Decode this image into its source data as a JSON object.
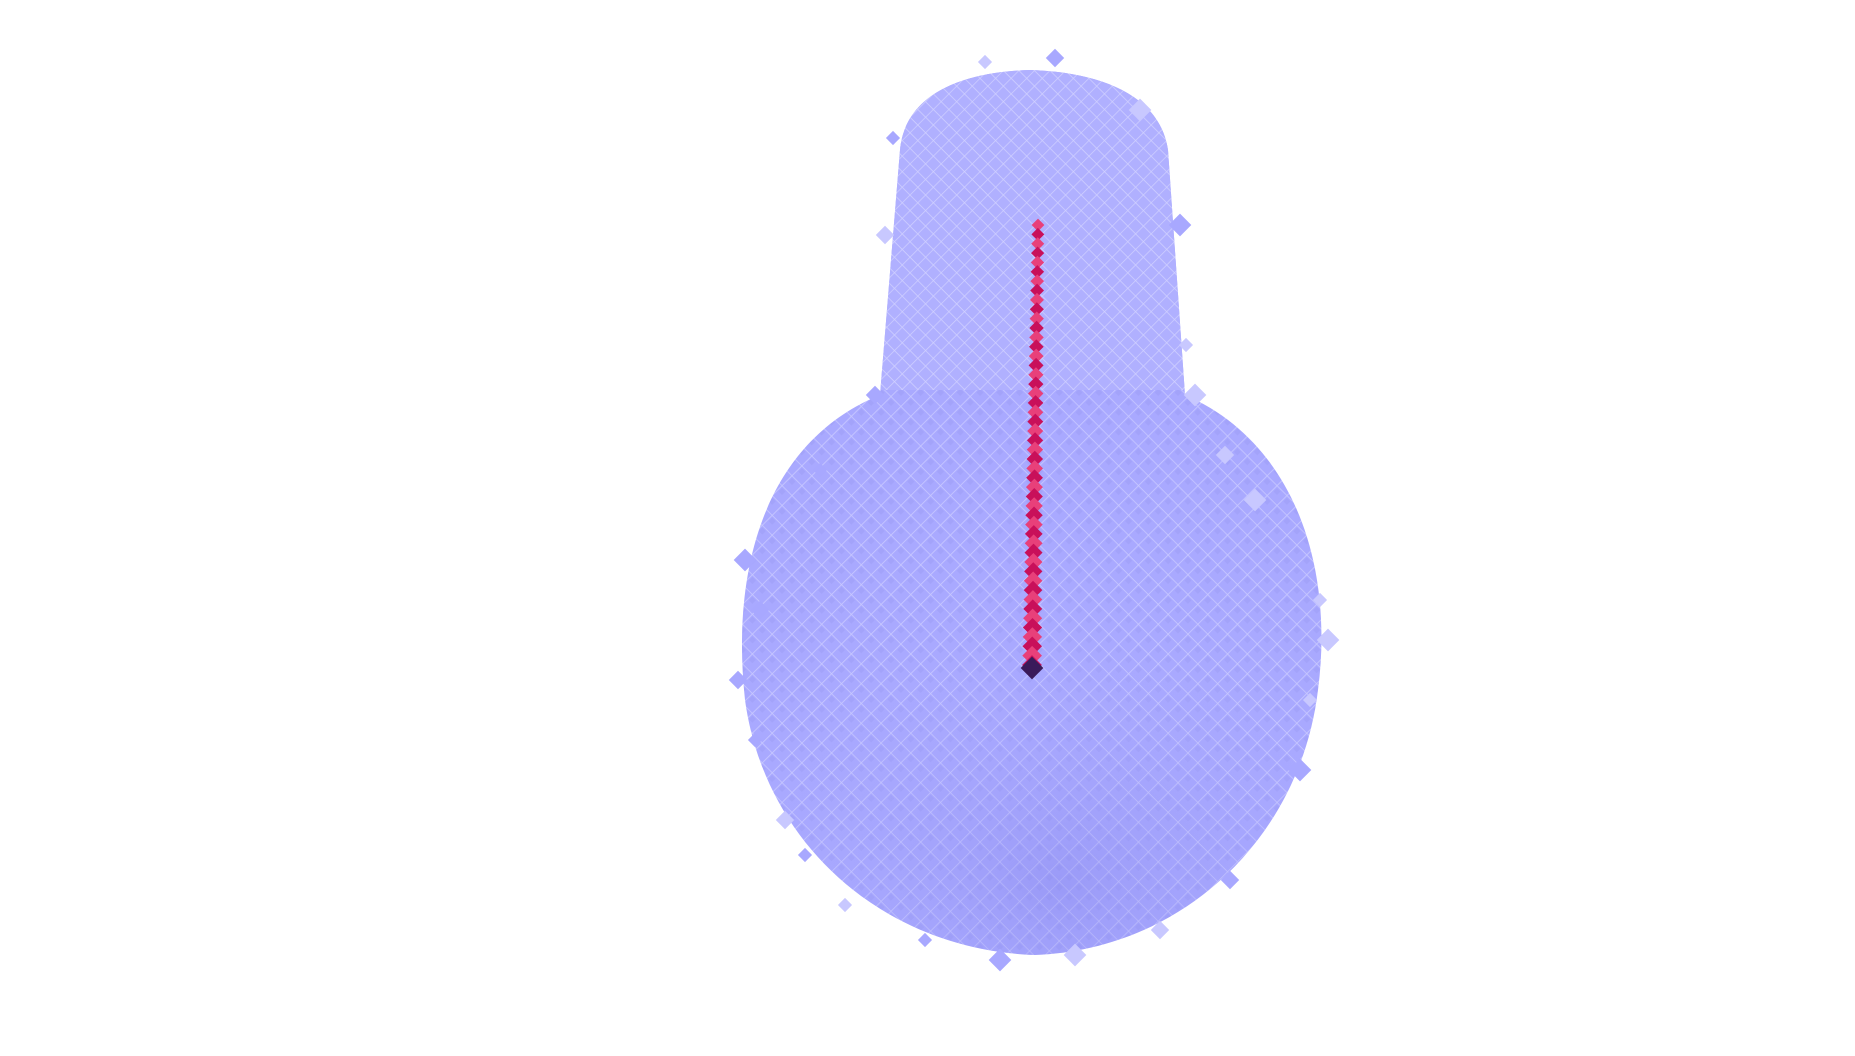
{
  "scene": {
    "background_color": "#ffffff",
    "voxel_body_color": "#a8a8ff",
    "voxel_body_edge_color": "#c8c8ff",
    "voxel_body_shadow_color": "#8f8ff0",
    "path_color": "#c8105a",
    "path_highlight_color": "#e8407a",
    "path_end_color": "#3a1a5a",
    "objects": [
      {
        "kind": "voxel-volume",
        "shape": "bulb",
        "parts": [
          "cylindrical-neck",
          "spherical-base"
        ]
      },
      {
        "kind": "voxel-path",
        "direction": "vertical",
        "segments": 48
      }
    ]
  }
}
